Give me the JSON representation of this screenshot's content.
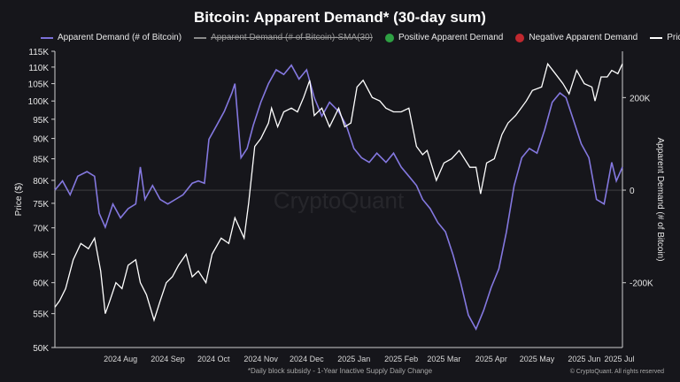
{
  "chart_data": {
    "type": "area",
    "title": "Bitcoin: Apparent Demand* (30-day sum)",
    "footnote": "*Daily block subsidy - 1-Year Inactive Supply Daily Change",
    "copyright": "© CryptoQuant. All rights reserved",
    "watermark": "CryptoQuant",
    "legend": [
      {
        "label": "Apparent Demand (# of Bitcoin)",
        "color": "#7b70d8",
        "kind": "line",
        "struck": false
      },
      {
        "label": "Apparent Demand (# of Bitcoin)-SMA(30)",
        "color": "#8a8a8a",
        "kind": "line",
        "struck": true
      },
      {
        "label": "Positive Apparent Demand",
        "color": "#2ea043",
        "kind": "dot",
        "struck": false
      },
      {
        "label": "Negative Apparent Demand",
        "color": "#c0282f",
        "kind": "dot",
        "struck": false
      },
      {
        "label": "Price",
        "color": "#ffffff",
        "kind": "line",
        "struck": false
      }
    ],
    "y_left": {
      "label": "Price ($)",
      "ticks": [
        50000,
        55000,
        60000,
        65000,
        70000,
        75000,
        80000,
        85000,
        90000,
        95000,
        100000,
        105000,
        110000,
        115000
      ],
      "tick_labels": [
        "50K",
        "55K",
        "60K",
        "65K",
        "70K",
        "75K",
        "80K",
        "85K",
        "90K",
        "95K",
        "100K",
        "105K",
        "110K",
        "115K"
      ],
      "range": [
        50000,
        115000
      ],
      "scale": "log"
    },
    "y_right": {
      "label": "Apparent Demand (# of Bitcoin)",
      "ticks": [
        -200000,
        0,
        200000
      ],
      "tick_labels": [
        "-200K",
        "0",
        "200K"
      ],
      "range": [
        -340000,
        300000
      ]
    },
    "x_ticks": [
      "2024 Aug",
      "2024 Sep",
      "2024 Oct",
      "2024 Nov",
      "2024 Dec",
      "2025 Jan",
      "2025 Feb",
      "2025 Mar",
      "2025 Apr",
      "2025 May",
      "2025 Jun",
      "2025 Jul"
    ],
    "x_range": [
      "2024-07-03",
      "2025-07-10"
    ],
    "demand": {
      "name": "Apparent Demand (# of Bitcoin)",
      "points": [
        [
          "2024-07-03",
          0
        ],
        [
          "2024-07-08",
          20000
        ],
        [
          "2024-07-13",
          -10000
        ],
        [
          "2024-07-18",
          30000
        ],
        [
          "2024-07-24",
          40000
        ],
        [
          "2024-07-29",
          30000
        ],
        [
          "2024-08-01",
          -50000
        ],
        [
          "2024-08-05",
          -80000
        ],
        [
          "2024-08-10",
          -30000
        ],
        [
          "2024-08-15",
          -60000
        ],
        [
          "2024-08-20",
          -40000
        ],
        [
          "2024-08-25",
          -30000
        ],
        [
          "2024-08-28",
          50000
        ],
        [
          "2024-08-31",
          -20000
        ],
        [
          "2024-09-05",
          10000
        ],
        [
          "2024-09-10",
          -20000
        ],
        [
          "2024-09-15",
          -30000
        ],
        [
          "2024-09-20",
          -20000
        ],
        [
          "2024-09-25",
          -10000
        ],
        [
          "2024-10-01",
          15000
        ],
        [
          "2024-10-05",
          20000
        ],
        [
          "2024-10-09",
          15000
        ],
        [
          "2024-10-12",
          110000
        ],
        [
          "2024-10-17",
          140000
        ],
        [
          "2024-10-22",
          170000
        ],
        [
          "2024-10-27",
          210000
        ],
        [
          "2024-10-29",
          230000
        ],
        [
          "2024-11-02",
          70000
        ],
        [
          "2024-11-06",
          90000
        ],
        [
          "2024-11-10",
          140000
        ],
        [
          "2024-11-15",
          190000
        ],
        [
          "2024-11-20",
          230000
        ],
        [
          "2024-11-25",
          260000
        ],
        [
          "2024-11-30",
          250000
        ],
        [
          "2024-12-05",
          270000
        ],
        [
          "2024-12-10",
          240000
        ],
        [
          "2024-12-15",
          260000
        ],
        [
          "2024-12-20",
          200000
        ],
        [
          "2024-12-25",
          160000
        ],
        [
          "2024-12-30",
          190000
        ],
        [
          "2025-01-05",
          170000
        ],
        [
          "2025-01-10",
          140000
        ],
        [
          "2025-01-15",
          90000
        ],
        [
          "2025-01-20",
          70000
        ],
        [
          "2025-01-25",
          60000
        ],
        [
          "2025-01-30",
          80000
        ],
        [
          "2025-02-05",
          60000
        ],
        [
          "2025-02-10",
          80000
        ],
        [
          "2025-02-15",
          50000
        ],
        [
          "2025-02-20",
          30000
        ],
        [
          "2025-02-25",
          10000
        ],
        [
          "2025-03-01",
          -20000
        ],
        [
          "2025-03-06",
          -40000
        ],
        [
          "2025-03-11",
          -70000
        ],
        [
          "2025-03-16",
          -90000
        ],
        [
          "2025-03-21",
          -140000
        ],
        [
          "2025-03-26",
          -200000
        ],
        [
          "2025-03-31",
          -270000
        ],
        [
          "2025-04-05",
          -300000
        ],
        [
          "2025-04-10",
          -260000
        ],
        [
          "2025-04-15",
          -210000
        ],
        [
          "2025-04-20",
          -170000
        ],
        [
          "2025-04-25",
          -90000
        ],
        [
          "2025-04-30",
          10000
        ],
        [
          "2025-05-05",
          70000
        ],
        [
          "2025-05-10",
          90000
        ],
        [
          "2025-05-15",
          80000
        ],
        [
          "2025-05-20",
          130000
        ],
        [
          "2025-05-25",
          190000
        ],
        [
          "2025-05-30",
          210000
        ],
        [
          "2025-06-03",
          200000
        ],
        [
          "2025-06-08",
          150000
        ],
        [
          "2025-06-13",
          100000
        ],
        [
          "2025-06-18",
          70000
        ],
        [
          "2025-06-23",
          -20000
        ],
        [
          "2025-06-28",
          -30000
        ],
        [
          "2025-07-03",
          60000
        ],
        [
          "2025-07-06",
          20000
        ],
        [
          "2025-07-10",
          50000
        ]
      ]
    },
    "price": {
      "name": "Price",
      "points": [
        [
          "2024-07-03",
          56000
        ],
        [
          "2024-07-06",
          57000
        ],
        [
          "2024-07-10",
          59000
        ],
        [
          "2024-07-15",
          64000
        ],
        [
          "2024-07-20",
          67000
        ],
        [
          "2024-07-25",
          66000
        ],
        [
          "2024-07-29",
          68000
        ],
        [
          "2024-08-02",
          62000
        ],
        [
          "2024-08-05",
          55000
        ],
        [
          "2024-08-08",
          57000
        ],
        [
          "2024-08-12",
          60000
        ],
        [
          "2024-08-16",
          59000
        ],
        [
          "2024-08-20",
          63000
        ],
        [
          "2024-08-25",
          64000
        ],
        [
          "2024-08-28",
          60000
        ],
        [
          "2024-09-01",
          58000
        ],
        [
          "2024-09-06",
          54000
        ],
        [
          "2024-09-10",
          57000
        ],
        [
          "2024-09-14",
          60000
        ],
        [
          "2024-09-18",
          61000
        ],
        [
          "2024-09-22",
          63000
        ],
        [
          "2024-09-27",
          65000
        ],
        [
          "2024-10-01",
          61000
        ],
        [
          "2024-10-05",
          62000
        ],
        [
          "2024-10-10",
          60000
        ],
        [
          "2024-10-14",
          65000
        ],
        [
          "2024-10-20",
          68000
        ],
        [
          "2024-10-25",
          67000
        ],
        [
          "2024-10-29",
          72000
        ],
        [
          "2024-11-04",
          68000
        ],
        [
          "2024-11-07",
          75000
        ],
        [
          "2024-11-11",
          88000
        ],
        [
          "2024-11-15",
          90000
        ],
        [
          "2024-11-20",
          94000
        ],
        [
          "2024-11-22",
          98000
        ],
        [
          "2024-11-26",
          93000
        ],
        [
          "2024-11-30",
          97000
        ],
        [
          "2024-12-05",
          98000
        ],
        [
          "2024-12-09",
          97000
        ],
        [
          "2024-12-13",
          101000
        ],
        [
          "2024-12-17",
          106000
        ],
        [
          "2024-12-20",
          96000
        ],
        [
          "2024-12-25",
          98000
        ],
        [
          "2024-12-30",
          93000
        ],
        [
          "2025-01-05",
          98000
        ],
        [
          "2025-01-09",
          93000
        ],
        [
          "2025-01-13",
          94000
        ],
        [
          "2025-01-17",
          104000
        ],
        [
          "2025-01-21",
          106000
        ],
        [
          "2025-01-27",
          101000
        ],
        [
          "2025-02-01",
          100000
        ],
        [
          "2025-02-05",
          98000
        ],
        [
          "2025-02-10",
          97000
        ],
        [
          "2025-02-15",
          97000
        ],
        [
          "2025-02-20",
          98000
        ],
        [
          "2025-02-25",
          88000
        ],
        [
          "2025-03-01",
          86000
        ],
        [
          "2025-03-04",
          87000
        ],
        [
          "2025-03-10",
          80000
        ],
        [
          "2025-03-15",
          84000
        ],
        [
          "2025-03-20",
          85000
        ],
        [
          "2025-03-25",
          87000
        ],
        [
          "2025-04-01",
          83000
        ],
        [
          "2025-04-05",
          83000
        ],
        [
          "2025-04-08",
          77000
        ],
        [
          "2025-04-12",
          84000
        ],
        [
          "2025-04-17",
          85000
        ],
        [
          "2025-04-22",
          91000
        ],
        [
          "2025-04-26",
          94000
        ],
        [
          "2025-05-01",
          96000
        ],
        [
          "2025-05-08",
          100000
        ],
        [
          "2025-05-12",
          103000
        ],
        [
          "2025-05-18",
          104000
        ],
        [
          "2025-05-22",
          111000
        ],
        [
          "2025-05-27",
          108000
        ],
        [
          "2025-06-01",
          105000
        ],
        [
          "2025-06-05",
          102000
        ],
        [
          "2025-06-10",
          109000
        ],
        [
          "2025-06-15",
          105000
        ],
        [
          "2025-06-20",
          104000
        ],
        [
          "2025-06-22",
          100000
        ],
        [
          "2025-06-26",
          107000
        ],
        [
          "2025-06-30",
          107000
        ],
        [
          "2025-07-03",
          109000
        ],
        [
          "2025-07-07",
          108000
        ],
        [
          "2025-07-10",
          111000
        ]
      ]
    }
  }
}
